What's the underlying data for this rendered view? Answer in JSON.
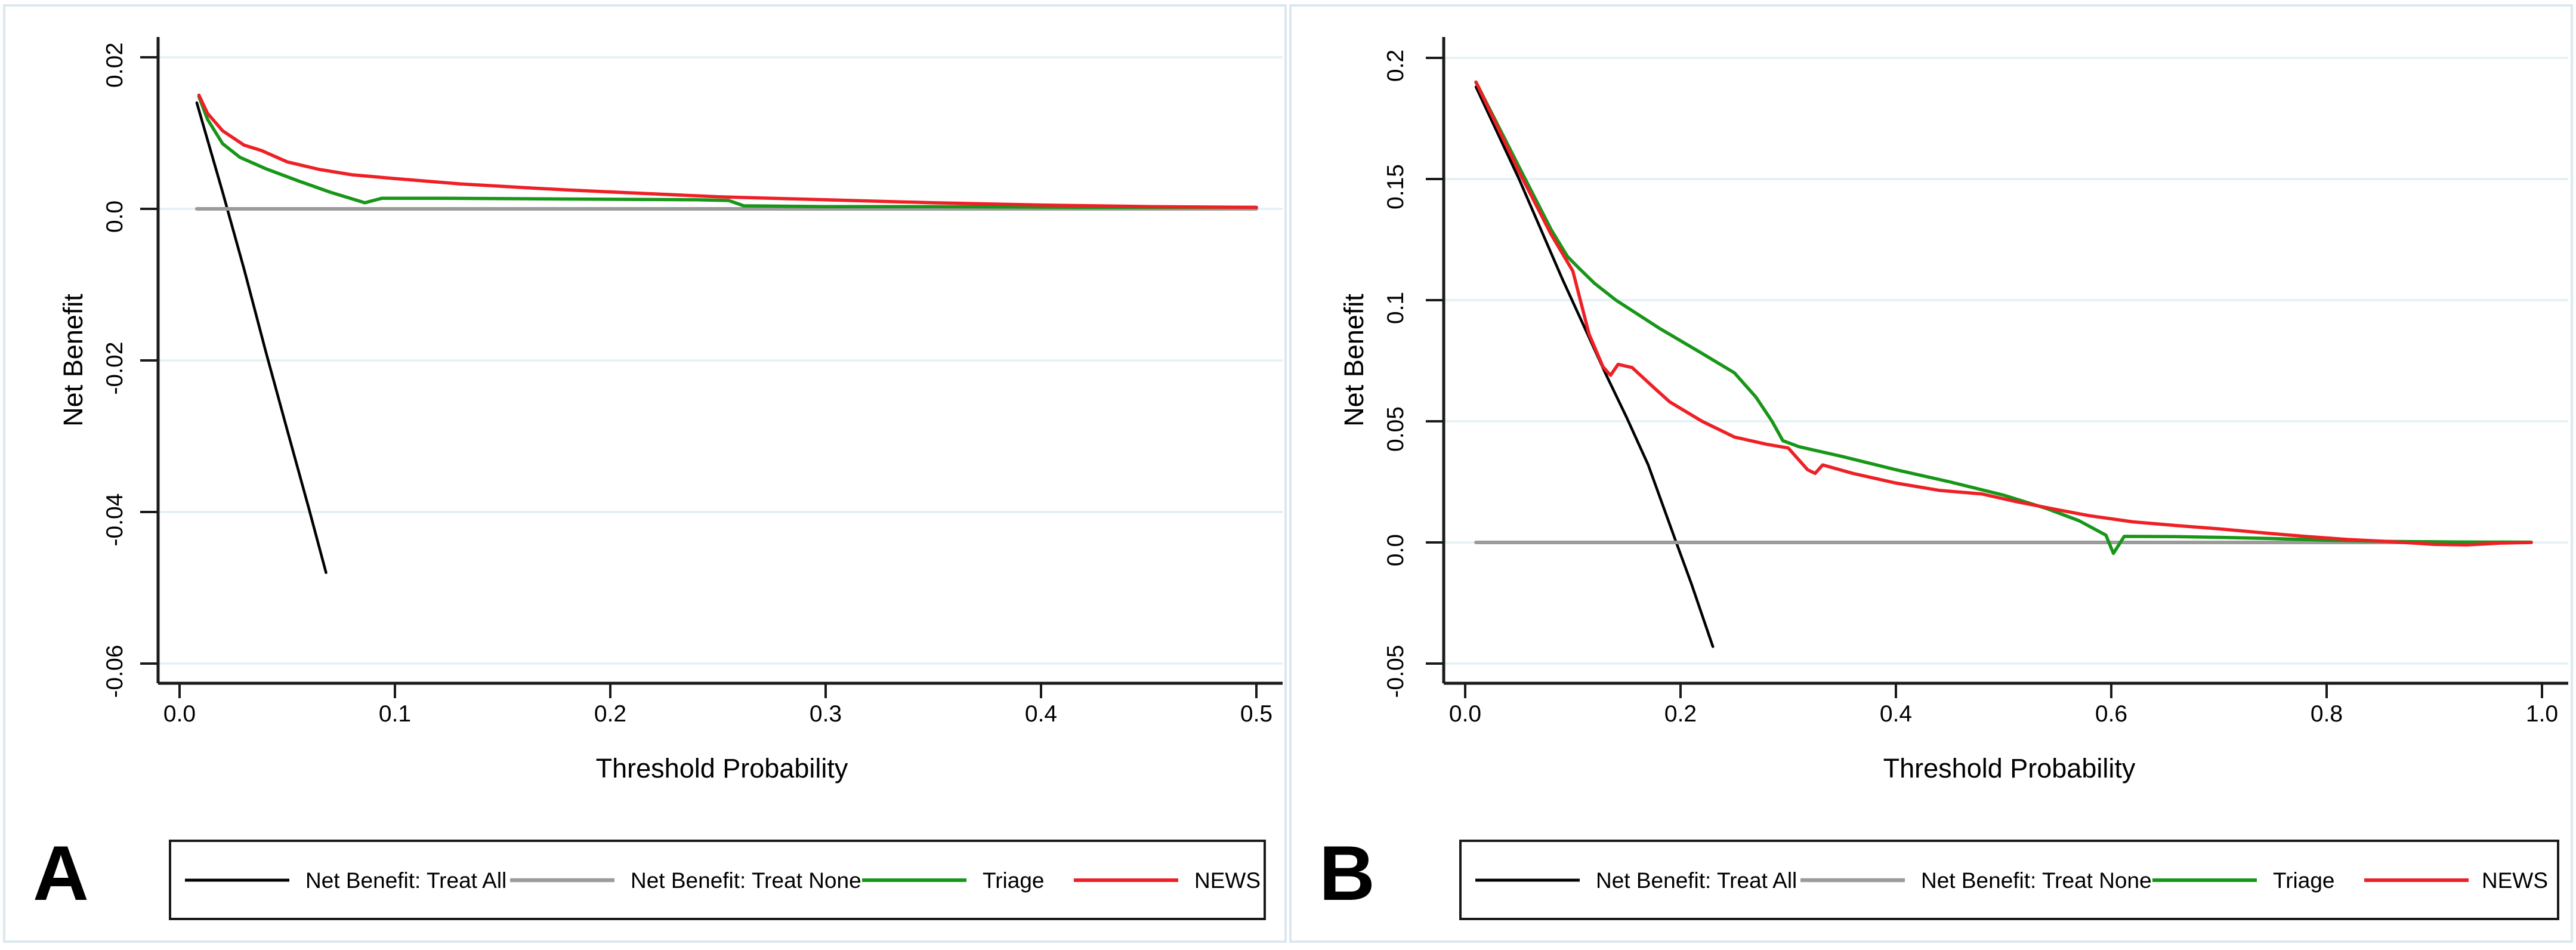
{
  "colors": {
    "treat_all": "#000000",
    "treat_none": "#9b9b9b",
    "triage": "#179617",
    "news": "#ee2026",
    "grid": "#e2f0f4",
    "axis": "#1a1a1a",
    "panel_border": "#dce8ee",
    "legend_border": "#1a1a1a",
    "text": "#000000"
  },
  "chart_data": [
    {
      "type": "line",
      "panel_label": "A",
      "title": "",
      "xlabel": "Threshold Probability",
      "ylabel": "Net Benefit",
      "xlim": [
        0.0,
        0.5
      ],
      "ylim": [
        -0.06,
        0.02
      ],
      "grid": true,
      "legend_position": "bottom",
      "x_ticks": [
        {
          "v": 0.0,
          "label": "0.0"
        },
        {
          "v": 0.1,
          "label": "0.1"
        },
        {
          "v": 0.2,
          "label": "0.2"
        },
        {
          "v": 0.3,
          "label": "0.3"
        },
        {
          "v": 0.4,
          "label": "0.4"
        },
        {
          "v": 0.5,
          "label": "0.5"
        }
      ],
      "y_ticks": [
        {
          "v": 0.02,
          "label": "0.02"
        },
        {
          "v": 0.0,
          "label": "0.0"
        },
        {
          "v": -0.02,
          "label": "-0.02"
        },
        {
          "v": -0.04,
          "label": "-0.04"
        },
        {
          "v": -0.06,
          "label": "-0.06"
        }
      ],
      "legend": [
        {
          "series": "treat_all",
          "label": "Net Benefit: Treat All"
        },
        {
          "series": "treat_none",
          "label": "Net Benefit: Treat None"
        },
        {
          "series": "triage",
          "label": "Triage"
        },
        {
          "series": "news",
          "label": "NEWS"
        }
      ],
      "series": [
        {
          "id": "treat_all",
          "name": "Net Benefit: Treat All",
          "color_key": "treat_all",
          "width": 4.5,
          "points": [
            [
              0.008,
              0.014
            ],
            [
              0.02,
              0.0022
            ],
            [
              0.03,
              -0.008
            ],
            [
              0.04,
              -0.0188
            ],
            [
              0.05,
              -0.0292
            ],
            [
              0.06,
              -0.0395
            ],
            [
              0.068,
              -0.048
            ]
          ]
        },
        {
          "id": "treat_none",
          "name": "Net Benefit: Treat None",
          "color_key": "treat_none",
          "width": 6,
          "points": [
            [
              0.008,
              0.0
            ],
            [
              0.5,
              0.0
            ]
          ]
        },
        {
          "id": "triage",
          "name": "Triage",
          "color_key": "triage",
          "width": 5.5,
          "points": [
            [
              0.009,
              0.0148
            ],
            [
              0.013,
              0.0118
            ],
            [
              0.02,
              0.0086
            ],
            [
              0.028,
              0.0068
            ],
            [
              0.04,
              0.0053
            ],
            [
              0.055,
              0.0037
            ],
            [
              0.07,
              0.0022
            ],
            [
              0.086,
              0.0008
            ],
            [
              0.094,
              0.0014
            ],
            [
              0.12,
              0.0014
            ],
            [
              0.18,
              0.0013
            ],
            [
              0.24,
              0.0012
            ],
            [
              0.255,
              0.0011
            ],
            [
              0.262,
              0.0004
            ],
            [
              0.3,
              0.0003
            ],
            [
              0.35,
              0.0003
            ],
            [
              0.42,
              0.0002
            ],
            [
              0.5,
              0.0002
            ]
          ]
        },
        {
          "id": "news",
          "name": "NEWS",
          "color_key": "news",
          "width": 5.5,
          "points": [
            [
              0.009,
              0.015
            ],
            [
              0.013,
              0.0126
            ],
            [
              0.02,
              0.0103
            ],
            [
              0.03,
              0.0084
            ],
            [
              0.038,
              0.0077
            ],
            [
              0.05,
              0.0062
            ],
            [
              0.065,
              0.0052
            ],
            [
              0.08,
              0.0045
            ],
            [
              0.1,
              0.004
            ],
            [
              0.13,
              0.0033
            ],
            [
              0.16,
              0.0028
            ],
            [
              0.18,
              0.0025
            ],
            [
              0.21,
              0.0021
            ],
            [
              0.25,
              0.0016
            ],
            [
              0.3,
              0.0012
            ],
            [
              0.35,
              0.0008
            ],
            [
              0.4,
              0.0005
            ],
            [
              0.45,
              0.0003
            ],
            [
              0.5,
              0.0002
            ]
          ]
        }
      ]
    },
    {
      "type": "line",
      "panel_label": "B",
      "title": "",
      "xlabel": "Threshold Probability",
      "ylabel": "Net Benefit",
      "xlim": [
        0.0,
        1.0
      ],
      "ylim": [
        -0.05,
        0.2
      ],
      "grid": true,
      "legend_position": "bottom",
      "x_ticks": [
        {
          "v": 0.0,
          "label": "0.0"
        },
        {
          "v": 0.2,
          "label": "0.2"
        },
        {
          "v": 0.4,
          "label": "0.4"
        },
        {
          "v": 0.6,
          "label": "0.6"
        },
        {
          "v": 0.8,
          "label": "0.8"
        },
        {
          "v": 1.0,
          "label": "1.0"
        }
      ],
      "y_ticks": [
        {
          "v": 0.2,
          "label": "0.2"
        },
        {
          "v": 0.15,
          "label": "0.15"
        },
        {
          "v": 0.1,
          "label": "0.1"
        },
        {
          "v": 0.05,
          "label": "0.05"
        },
        {
          "v": 0.0,
          "label": "0.0"
        },
        {
          "v": -0.05,
          "label": "-0.05"
        }
      ],
      "legend": [
        {
          "series": "treat_all",
          "label": "Net Benefit: Treat All"
        },
        {
          "series": "treat_none",
          "label": "Net Benefit: Treat None"
        },
        {
          "series": "triage",
          "label": "Triage"
        },
        {
          "series": "news",
          "label": "NEWS"
        }
      ],
      "series": [
        {
          "id": "treat_all",
          "name": "Net Benefit: Treat All",
          "color_key": "treat_all",
          "width": 4.5,
          "points": [
            [
              0.01,
              0.188
            ],
            [
              0.05,
              0.15
            ],
            [
              0.09,
              0.109
            ],
            [
              0.11,
              0.0895
            ],
            [
              0.13,
              0.07
            ],
            [
              0.15,
              0.0515
            ],
            [
              0.17,
              0.032
            ],
            [
              0.196,
              0.0
            ],
            [
              0.21,
              -0.017
            ],
            [
              0.23,
              -0.043
            ]
          ]
        },
        {
          "id": "treat_none",
          "name": "Net Benefit: Treat None",
          "color_key": "treat_none",
          "width": 6,
          "points": [
            [
              0.01,
              0.0
            ],
            [
              0.99,
              0.0
            ]
          ]
        },
        {
          "id": "triage",
          "name": "Triage",
          "color_key": "triage",
          "width": 5.5,
          "points": [
            [
              0.01,
              0.19
            ],
            [
              0.05,
              0.155
            ],
            [
              0.08,
              0.129
            ],
            [
              0.095,
              0.118
            ],
            [
              0.105,
              0.1135
            ],
            [
              0.12,
              0.107
            ],
            [
              0.14,
              0.1
            ],
            [
              0.18,
              0.0885
            ],
            [
              0.22,
              0.078
            ],
            [
              0.25,
              0.07
            ],
            [
              0.27,
              0.06
            ],
            [
              0.285,
              0.05
            ],
            [
              0.295,
              0.042
            ],
            [
              0.31,
              0.0395
            ],
            [
              0.35,
              0.0355
            ],
            [
              0.4,
              0.03
            ],
            [
              0.45,
              0.025
            ],
            [
              0.5,
              0.0195
            ],
            [
              0.54,
              0.014
            ],
            [
              0.57,
              0.009
            ],
            [
              0.595,
              0.003
            ],
            [
              0.602,
              -0.0045
            ],
            [
              0.612,
              0.0025
            ],
            [
              0.66,
              0.0024
            ],
            [
              0.7,
              0.0021
            ],
            [
              0.75,
              0.0016
            ],
            [
              0.8,
              0.0009
            ],
            [
              0.86,
              0.0004
            ],
            [
              0.92,
              0.0002
            ],
            [
              0.99,
              0.0001
            ]
          ]
        },
        {
          "id": "news",
          "name": "NEWS",
          "color_key": "news",
          "width": 5.5,
          "points": [
            [
              0.01,
              0.19
            ],
            [
              0.05,
              0.153
            ],
            [
              0.08,
              0.127
            ],
            [
              0.1,
              0.112
            ],
            [
              0.115,
              0.086
            ],
            [
              0.128,
              0.0725
            ],
            [
              0.135,
              0.069
            ],
            [
              0.142,
              0.0735
            ],
            [
              0.155,
              0.0722
            ],
            [
              0.175,
              0.064
            ],
            [
              0.19,
              0.058
            ],
            [
              0.22,
              0.05
            ],
            [
              0.25,
              0.0435
            ],
            [
              0.28,
              0.0405
            ],
            [
              0.3,
              0.039
            ],
            [
              0.318,
              0.03
            ],
            [
              0.325,
              0.0285
            ],
            [
              0.332,
              0.032
            ],
            [
              0.36,
              0.0285
            ],
            [
              0.4,
              0.0245
            ],
            [
              0.44,
              0.0215
            ],
            [
              0.48,
              0.02
            ],
            [
              0.51,
              0.017
            ],
            [
              0.55,
              0.0135
            ],
            [
              0.58,
              0.011
            ],
            [
              0.62,
              0.0085
            ],
            [
              0.66,
              0.007
            ],
            [
              0.7,
              0.0056
            ],
            [
              0.74,
              0.004
            ],
            [
              0.78,
              0.0025
            ],
            [
              0.82,
              0.0012
            ],
            [
              0.86,
              0.0003
            ],
            [
              0.9,
              -0.0008
            ],
            [
              0.93,
              -0.001
            ],
            [
              0.96,
              -0.0003
            ],
            [
              0.99,
              0.0
            ]
          ]
        }
      ]
    }
  ]
}
